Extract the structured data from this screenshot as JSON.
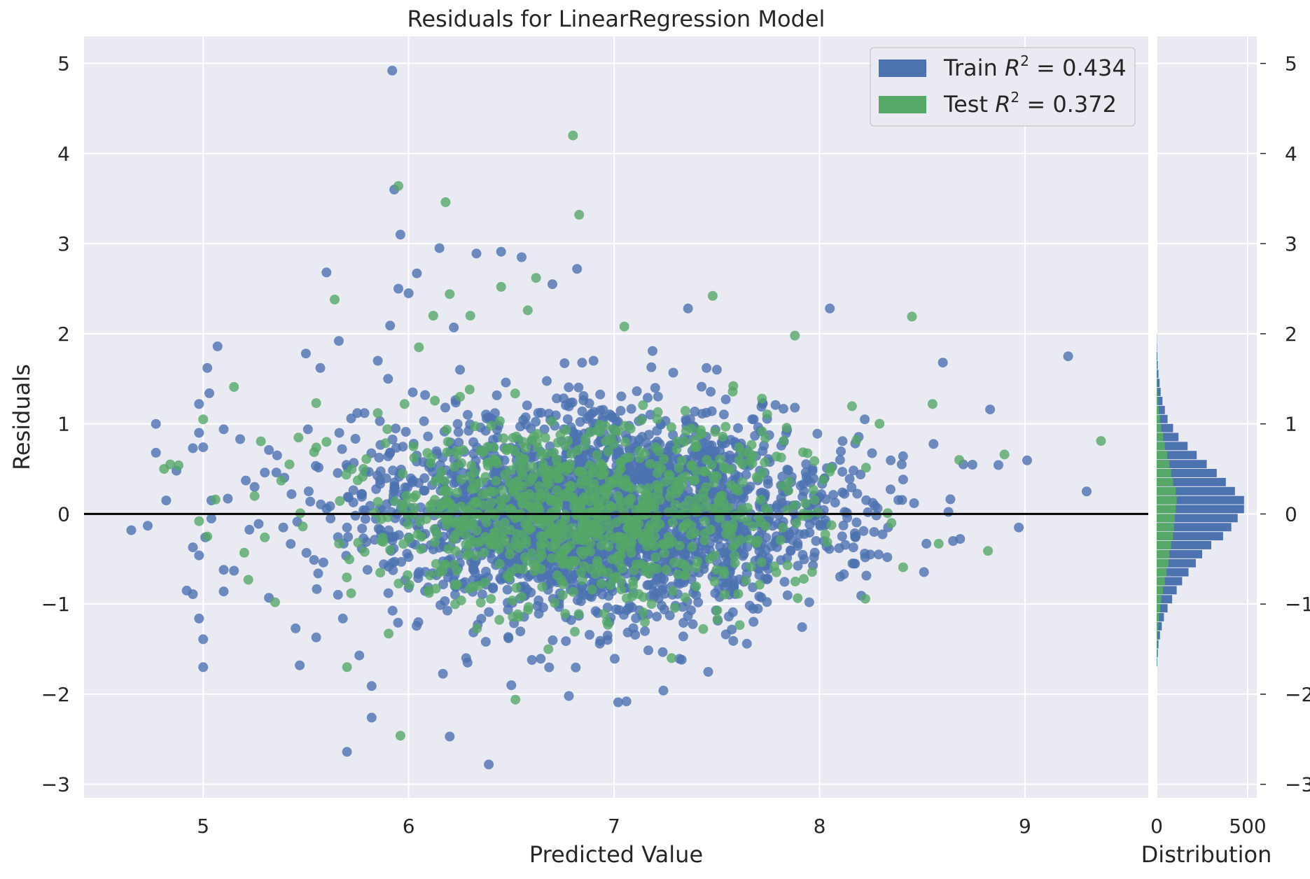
{
  "chart_data": {
    "type": "scatter",
    "title": "Residuals for LinearRegression Model",
    "xlabel": "Predicted Value",
    "ylabel": "Residuals",
    "xlim": [
      4.42,
      9.6
    ],
    "ylim": [
      -3.15,
      5.3
    ],
    "xticks": [
      5,
      6,
      7,
      8,
      9
    ],
    "yticks": [
      -3,
      -2,
      -1,
      0,
      1,
      2,
      3,
      4,
      5
    ],
    "grid": true,
    "zero_line": 0,
    "legend_position": "top-right",
    "colors": {
      "train": "#4c72b0",
      "test": "#55a868",
      "background": "#eaeaf2",
      "grid": "#ffffff",
      "zero_line": "#000000"
    },
    "series": [
      {
        "name": "Train",
        "legend_label": "Train R² = 0.434",
        "legend_prefix": "Train ",
        "legend_r2_value": "0.434",
        "color": "#4c72b0",
        "points_listed": [
          [
            4.65,
            -0.18
          ],
          [
            4.73,
            -0.13
          ],
          [
            4.77,
            1.0
          ],
          [
            4.77,
            0.68
          ],
          [
            4.82,
            0.15
          ],
          [
            4.87,
            0.48
          ],
          [
            4.92,
            -0.85
          ],
          [
            4.95,
            -0.89
          ],
          [
            4.95,
            -0.37
          ],
          [
            4.95,
            0.73
          ],
          [
            4.98,
            -1.16
          ],
          [
            4.98,
            0.9
          ],
          [
            4.98,
            -0.46
          ],
          [
            4.98,
            1.22
          ],
          [
            5.0,
            -1.39
          ],
          [
            5.0,
            -1.7
          ],
          [
            5.0,
            0.74
          ],
          [
            5.01,
            -0.26
          ],
          [
            5.02,
            1.62
          ],
          [
            5.03,
            1.34
          ],
          [
            5.04,
            -0.05
          ],
          [
            5.04,
            0.15
          ],
          [
            5.07,
            1.86
          ],
          [
            5.1,
            -0.62
          ],
          [
            5.1,
            0.94
          ],
          [
            5.1,
            -0.86
          ],
          [
            5.12,
            0.17
          ],
          [
            5.15,
            -0.63
          ],
          [
            5.18,
            0.83
          ],
          [
            5.25,
            0.3
          ],
          [
            5.27,
            -0.11
          ],
          [
            5.3,
            0.46
          ],
          [
            5.32,
            -0.93
          ],
          [
            5.32,
            0.71
          ],
          [
            5.36,
            0.65
          ],
          [
            5.39,
            -0.15
          ],
          [
            5.43,
            0.22
          ],
          [
            5.45,
            -1.27
          ],
          [
            5.47,
            -1.68
          ],
          [
            5.5,
            1.78
          ],
          [
            5.51,
            0.94
          ],
          [
            5.54,
            -0.51
          ],
          [
            5.55,
            -1.37
          ],
          [
            5.56,
            -0.66
          ],
          [
            5.57,
            1.62
          ],
          [
            5.6,
            2.68
          ],
          [
            5.62,
            -0.05
          ],
          [
            5.66,
            1.92
          ],
          [
            5.68,
            -1.16
          ],
          [
            5.7,
            -2.64
          ],
          [
            5.72,
            1.06
          ],
          [
            5.75,
            1.12
          ],
          [
            5.76,
            -1.57
          ],
          [
            5.78,
            -0.27
          ],
          [
            5.8,
            -0.62
          ],
          [
            5.82,
            -1.91
          ],
          [
            5.82,
            -2.26
          ],
          [
            5.85,
            1.7
          ],
          [
            5.86,
            1.03
          ],
          [
            5.9,
            0.64
          ],
          [
            5.9,
            1.5
          ],
          [
            5.91,
            2.09
          ],
          [
            5.92,
            4.92
          ],
          [
            5.93,
            3.6
          ],
          [
            5.95,
            2.5
          ],
          [
            5.96,
            3.1
          ],
          [
            5.98,
            0.2
          ],
          [
            6.0,
            2.45
          ],
          [
            6.02,
            1.35
          ],
          [
            6.04,
            2.67
          ],
          [
            6.07,
            -0.38
          ],
          [
            6.08,
            1.32
          ],
          [
            6.1,
            0.52
          ],
          [
            6.15,
            2.95
          ],
          [
            6.2,
            -2.47
          ],
          [
            6.22,
            2.07
          ],
          [
            6.25,
            1.6
          ],
          [
            6.28,
            -1.6
          ],
          [
            6.3,
            0.46
          ],
          [
            6.33,
            2.89
          ],
          [
            6.35,
            0.96
          ],
          [
            6.39,
            -2.78
          ],
          [
            6.42,
            1.12
          ],
          [
            6.45,
            2.91
          ],
          [
            6.5,
            -1.9
          ],
          [
            6.55,
            2.85
          ],
          [
            6.6,
            -1.62
          ],
          [
            6.64,
            0.12
          ],
          [
            6.7,
            2.55
          ],
          [
            6.72,
            0.4
          ],
          [
            6.78,
            -2.02
          ],
          [
            6.82,
            2.72
          ],
          [
            6.85,
            -0.53
          ],
          [
            6.9,
            1.7
          ],
          [
            6.92,
            -1.1
          ],
          [
            6.98,
            0.32
          ],
          [
            7.02,
            -2.09
          ],
          [
            7.06,
            -2.08
          ],
          [
            7.1,
            0.7
          ],
          [
            7.15,
            -1.3
          ],
          [
            7.2,
            1.4
          ],
          [
            7.24,
            -1.96
          ],
          [
            7.3,
            0.35
          ],
          [
            7.36,
            2.28
          ],
          [
            7.4,
            -0.9
          ],
          [
            7.45,
            1.62
          ],
          [
            7.52,
            0.22
          ],
          [
            7.6,
            -0.42
          ],
          [
            7.68,
            1.05
          ],
          [
            7.75,
            -0.61
          ],
          [
            7.82,
            0.31
          ],
          [
            7.88,
            1.18
          ],
          [
            7.95,
            -0.98
          ],
          [
            8.05,
            2.28
          ],
          [
            8.1,
            0.6
          ],
          [
            8.16,
            -0.55
          ],
          [
            8.22,
            1.05
          ],
          [
            8.27,
            0.09
          ],
          [
            8.33,
            -0.48
          ],
          [
            8.4,
            0.55
          ],
          [
            8.46,
            0.12
          ],
          [
            8.52,
            -0.33
          ],
          [
            8.6,
            1.68
          ],
          [
            8.65,
            -0.3
          ],
          [
            8.7,
            0.55
          ],
          [
            8.83,
            1.16
          ],
          [
            8.97,
            -0.15
          ],
          [
            9.21,
            1.75
          ],
          [
            9.3,
            0.25
          ]
        ]
      },
      {
        "name": "Test",
        "legend_label": "Test R² = 0.372",
        "legend_prefix": "Test ",
        "legend_r2_value": "0.372",
        "color": "#55a868",
        "points_listed": [
          [
            4.81,
            0.5
          ],
          [
            4.84,
            0.55
          ],
          [
            4.88,
            0.54
          ],
          [
            4.98,
            -0.08
          ],
          [
            5.0,
            1.05
          ],
          [
            5.02,
            -0.25
          ],
          [
            5.06,
            0.16
          ],
          [
            5.15,
            1.41
          ],
          [
            5.2,
            -0.43
          ],
          [
            5.22,
            -0.73
          ],
          [
            5.25,
            0.2
          ],
          [
            5.3,
            -0.26
          ],
          [
            5.35,
            -0.98
          ],
          [
            5.38,
            0.37
          ],
          [
            5.42,
            0.55
          ],
          [
            5.55,
            1.23
          ],
          [
            5.6,
            0.8
          ],
          [
            5.64,
            2.38
          ],
          [
            5.7,
            -1.7
          ],
          [
            5.72,
            -0.88
          ],
          [
            5.78,
            0.5
          ],
          [
            5.85,
            1.12
          ],
          [
            5.95,
            3.64
          ],
          [
            5.96,
            -2.46
          ],
          [
            5.98,
            1.22
          ],
          [
            6.05,
            1.85
          ],
          [
            6.12,
            2.2
          ],
          [
            6.18,
            3.46
          ],
          [
            6.2,
            2.44
          ],
          [
            6.25,
            1.3
          ],
          [
            6.3,
            2.2
          ],
          [
            6.35,
            0.7
          ],
          [
            6.45,
            2.52
          ],
          [
            6.52,
            -2.06
          ],
          [
            6.58,
            2.26
          ],
          [
            6.62,
            2.62
          ],
          [
            6.68,
            -1.5
          ],
          [
            6.75,
            -0.9
          ],
          [
            6.8,
            4.2
          ],
          [
            6.83,
            3.32
          ],
          [
            6.9,
            0.5
          ],
          [
            7.05,
            2.08
          ],
          [
            7.15,
            -1.2
          ],
          [
            7.28,
            -1.6
          ],
          [
            7.35,
            0.92
          ],
          [
            7.48,
            2.42
          ],
          [
            7.58,
            1.42
          ],
          [
            7.72,
            1.28
          ],
          [
            7.78,
            -0.58
          ],
          [
            7.88,
            1.98
          ],
          [
            8.05,
            0.47
          ],
          [
            8.18,
            0.82
          ],
          [
            8.35,
            -0.1
          ],
          [
            8.45,
            2.19
          ],
          [
            8.55,
            1.22
          ],
          [
            8.58,
            -0.33
          ],
          [
            8.68,
            0.6
          ],
          [
            8.82,
            -0.41
          ],
          [
            8.9,
            0.66
          ],
          [
            9.37,
            0.81
          ]
        ],
        "dense_cluster_note": ""
      }
    ],
    "distribution": {
      "xlabel": "Distribution",
      "xticks": [
        0,
        500
      ],
      "xlim": [
        0,
        550
      ],
      "bin_width": 0.1,
      "train_bins": [
        [
          -1.65,
          3
        ],
        [
          -1.55,
          6
        ],
        [
          -1.45,
          10
        ],
        [
          -1.35,
          18
        ],
        [
          -1.25,
          28
        ],
        [
          -1.15,
          40
        ],
        [
          -1.05,
          60
        ],
        [
          -0.95,
          85
        ],
        [
          -0.85,
          110
        ],
        [
          -0.75,
          140
        ],
        [
          -0.65,
          175
        ],
        [
          -0.55,
          215
        ],
        [
          -0.45,
          250
        ],
        [
          -0.35,
          300
        ],
        [
          -0.25,
          365
        ],
        [
          -0.15,
          410
        ],
        [
          -0.05,
          445
        ],
        [
          0.05,
          480
        ],
        [
          0.15,
          480
        ],
        [
          0.25,
          430
        ],
        [
          0.35,
          380
        ],
        [
          0.45,
          330
        ],
        [
          0.55,
          275
        ],
        [
          0.65,
          220
        ],
        [
          0.75,
          170
        ],
        [
          0.85,
          120
        ],
        [
          0.95,
          90
        ],
        [
          1.05,
          60
        ],
        [
          1.15,
          45
        ],
        [
          1.25,
          32
        ],
        [
          1.35,
          22
        ],
        [
          1.45,
          16
        ],
        [
          1.55,
          10
        ],
        [
          1.65,
          6
        ],
        [
          1.75,
          4
        ],
        [
          1.85,
          2
        ],
        [
          1.95,
          1
        ]
      ],
      "test_bins": [
        [
          -1.65,
          1
        ],
        [
          -1.55,
          2
        ],
        [
          -1.45,
          3
        ],
        [
          -1.35,
          5
        ],
        [
          -1.25,
          8
        ],
        [
          -1.15,
          13
        ],
        [
          -1.05,
          20
        ],
        [
          -0.95,
          25
        ],
        [
          -0.85,
          35
        ],
        [
          -0.75,
          45
        ],
        [
          -0.65,
          55
        ],
        [
          -0.55,
          65
        ],
        [
          -0.45,
          70
        ],
        [
          -0.35,
          80
        ],
        [
          -0.25,
          90
        ],
        [
          -0.15,
          95
        ],
        [
          -0.05,
          100
        ],
        [
          0.05,
          105
        ],
        [
          0.15,
          110
        ],
        [
          0.25,
          105
        ],
        [
          0.35,
          90
        ],
        [
          0.45,
          80
        ],
        [
          0.55,
          70
        ],
        [
          0.65,
          58
        ],
        [
          0.75,
          45
        ],
        [
          0.85,
          35
        ],
        [
          0.95,
          25
        ],
        [
          1.05,
          18
        ],
        [
          1.15,
          12
        ],
        [
          1.25,
          8
        ],
        [
          1.35,
          5
        ],
        [
          1.45,
          3
        ],
        [
          1.55,
          2
        ],
        [
          1.65,
          1
        ]
      ]
    }
  }
}
